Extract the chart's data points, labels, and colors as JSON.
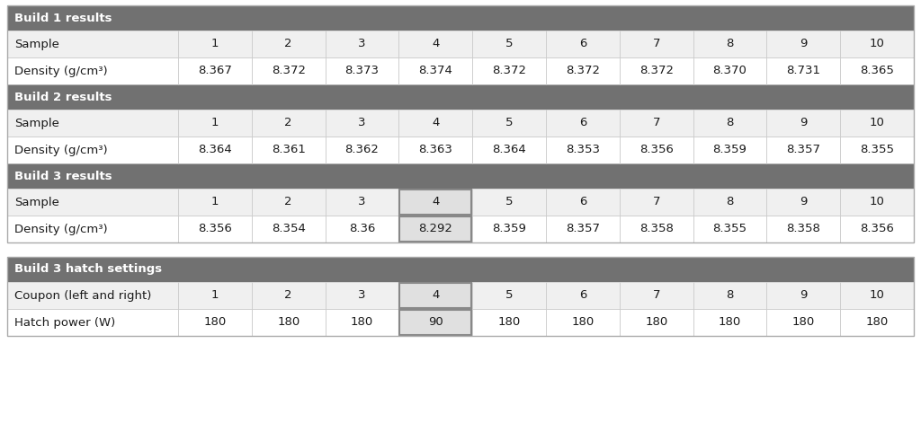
{
  "header_bg": "#717171",
  "header_text_color": "#ffffff",
  "row_bg_odd": "#f0f0f0",
  "row_bg_even": "#ffffff",
  "cell_border_color": "#cccccc",
  "outer_border_color": "#aaaaaa",
  "highlight_border_color": "#888888",
  "highlight_fill_color": "#e0e0e0",
  "font_size": 9.5,
  "header_font_size": 9.5,
  "figsize": [
    10.24,
    4.71
  ],
  "dpi": 100,
  "table1_header": "Build 1 results",
  "table1_rows": [
    [
      "Sample",
      "1",
      "2",
      "3",
      "4",
      "5",
      "6",
      "7",
      "8",
      "9",
      "10"
    ],
    [
      "Density (g/cm³)",
      "8.367",
      "8.372",
      "8.373",
      "8.374",
      "8.372",
      "8.372",
      "8.372",
      "8.370",
      "8.731",
      "8.365"
    ]
  ],
  "table2_header": "Build 2 results",
  "table2_rows": [
    [
      "Sample",
      "1",
      "2",
      "3",
      "4",
      "5",
      "6",
      "7",
      "8",
      "9",
      "10"
    ],
    [
      "Density (g/cm³)",
      "8.364",
      "8.361",
      "8.362",
      "8.363",
      "8.364",
      "8.353",
      "8.356",
      "8.359",
      "8.357",
      "8.355"
    ]
  ],
  "table3_header": "Build 3 results",
  "table3_rows": [
    [
      "Sample",
      "1",
      "2",
      "3",
      "4",
      "5",
      "6",
      "7",
      "8",
      "9",
      "10"
    ],
    [
      "Density (g/cm³)",
      "8.356",
      "8.354",
      "8.36",
      "8.292",
      "8.359",
      "8.357",
      "8.358",
      "8.355",
      "8.358",
      "8.356"
    ]
  ],
  "table3_highlight_col": 4,
  "table4_header": "Build 3 hatch settings",
  "table4_rows": [
    [
      "Coupon (left and right)",
      "1",
      "2",
      "3",
      "4",
      "5",
      "6",
      "7",
      "8",
      "9",
      "10"
    ],
    [
      "Hatch power (W)",
      "180",
      "180",
      "180",
      "90",
      "180",
      "180",
      "180",
      "180",
      "180",
      "180"
    ]
  ],
  "table4_highlight_col": 4
}
